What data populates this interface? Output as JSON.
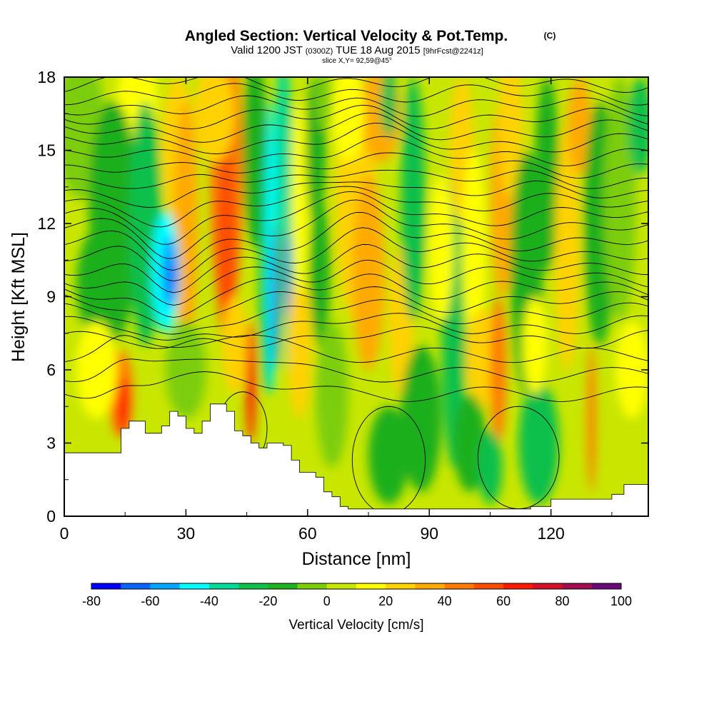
{
  "title": {
    "main": "Angled Section: Vertical Velocity & Pot.Temp.",
    "main_suffix": "(C)",
    "valid_prefix": "Valid 1200 JST",
    "valid_zulu": "(0300Z)",
    "valid_date": "TUE 18 Aug 2015",
    "forecast": "[9hrFcst@2241z]",
    "slice": "slice X,Y= 92,59@45°"
  },
  "chart_data": {
    "type": "heatmap",
    "xlabel": "Distance [nm]",
    "ylabel": "Height [Kft MSL]",
    "xlim": [
      0,
      144
    ],
    "ylim": [
      0,
      18
    ],
    "xticks": [
      0,
      30,
      60,
      90,
      120
    ],
    "yticks": [
      0,
      3,
      6,
      9,
      12,
      15,
      18
    ],
    "colorbar": {
      "label": "Vertical Velocity [cm/s]",
      "min": -80,
      "max": 100,
      "ticks": [
        -80,
        -60,
        -40,
        -20,
        0,
        20,
        40,
        60,
        80,
        100
      ],
      "colors": [
        "#0000ff",
        "#0a64ff",
        "#00a6ff",
        "#00ffff",
        "#00d999",
        "#11c04b",
        "#1faf1f",
        "#7ccd0a",
        "#c8e600",
        "#ffff00",
        "#ffd200",
        "#ffaa00",
        "#ff7a00",
        "#ff4d00",
        "#ff1a00",
        "#d4102a",
        "#a00f50",
        "#6a0a7a"
      ]
    },
    "terrain_kft": {
      "x": [
        0,
        10,
        12,
        14,
        16,
        18,
        20,
        22,
        24,
        26,
        28,
        30,
        32,
        34,
        36,
        38,
        40,
        42,
        44,
        46,
        48,
        50,
        52,
        54,
        56,
        58,
        60,
        62,
        64,
        66,
        68,
        70,
        75,
        80,
        85,
        90,
        95,
        100,
        105,
        110,
        115,
        120,
        125,
        130,
        135,
        138,
        140,
        144
      ],
      "height": [
        2.6,
        2.6,
        2.6,
        3.6,
        3.9,
        3.9,
        3.4,
        3.4,
        3.7,
        4.3,
        4.1,
        3.6,
        3.4,
        3.9,
        4.6,
        4.6,
        4.3,
        3.5,
        3.3,
        3.0,
        2.8,
        3.0,
        3.0,
        2.9,
        2.3,
        1.8,
        1.8,
        1.6,
        1.0,
        0.8,
        0.4,
        0.3,
        0.3,
        0.3,
        0.3,
        0.3,
        0.3,
        0.3,
        0.3,
        0.3,
        0.4,
        0.7,
        0.7,
        0.7,
        0.9,
        1.3,
        1.3,
        1.3
      ]
    }
  }
}
